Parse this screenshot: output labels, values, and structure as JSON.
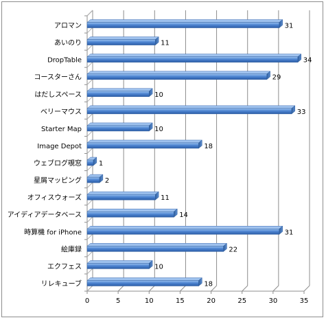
{
  "chart_data": {
    "type": "bar",
    "orientation": "horizontal",
    "categories": [
      "アロマン",
      "あいのり",
      "DropTable",
      "コースターさん",
      "はだしスペース",
      "ベリーマウス",
      "Starter Map",
      "Image Depot",
      "ウェブログ覗窓",
      "星屑マッピング",
      "オフィスウォーズ",
      "アイディアデータベース",
      "時算機 for iPhone",
      "絵庫録",
      "エクフェス",
      "リレキューブ"
    ],
    "values": [
      31,
      11,
      34,
      29,
      10,
      33,
      10,
      18,
      1,
      2,
      11,
      14,
      31,
      22,
      10,
      18
    ],
    "xlim": [
      0,
      35
    ],
    "xticks": [
      "0",
      "5",
      "10",
      "15",
      "20",
      "25",
      "30",
      "35"
    ],
    "grid": true,
    "bar_color": "#4a7ebb",
    "legend": "none"
  }
}
